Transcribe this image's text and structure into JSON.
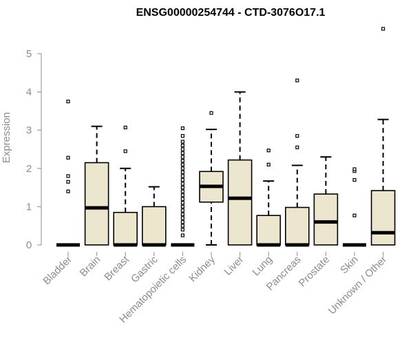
{
  "chart_data": {
    "type": "box",
    "title": "ENSG00000254744 - CTD-3076O17.1",
    "xlabel": "",
    "ylabel": "Expression",
    "ylim": [
      0,
      5.7
    ],
    "yticks": [
      0,
      1,
      2,
      3,
      4,
      5
    ],
    "box_color": "#ede6cf",
    "categories": [
      "Bladder",
      "Brain",
      "Breast",
      "Gastric",
      "Hematopoietic cells",
      "Kidney",
      "Liver",
      "Lung",
      "Pancreas",
      "Prostate",
      "Skin",
      "Unknown / Other"
    ],
    "boxes": [
      {
        "min": 0,
        "q1": 0,
        "median": 0,
        "q3": 0,
        "max": 0,
        "outliers": [
          1.4,
          1.65,
          1.8,
          2.28,
          3.75
        ]
      },
      {
        "min": 0,
        "q1": 0,
        "median": 0.97,
        "q3": 2.15,
        "max": 3.1,
        "outliers": []
      },
      {
        "min": 0,
        "q1": 0,
        "median": 0,
        "q3": 0.85,
        "max": 2.0,
        "outliers": [
          2.45,
          3.07
        ]
      },
      {
        "min": 0,
        "q1": 0,
        "median": 0,
        "q3": 1.0,
        "max": 1.52,
        "outliers": []
      },
      {
        "min": 0,
        "q1": 0,
        "median": 0,
        "q3": 0,
        "max": 0,
        "outliers": [
          0.25,
          0.4,
          0.5,
          0.6,
          0.7,
          0.8,
          0.9,
          1.0,
          1.1,
          1.2,
          1.3,
          1.4,
          1.5,
          1.6,
          1.7,
          1.8,
          1.9,
          2.0,
          2.1,
          2.2,
          2.3,
          2.4,
          2.5,
          2.6,
          2.7,
          2.85,
          3.05
        ]
      },
      {
        "min": 0,
        "q1": 1.12,
        "median": 1.53,
        "q3": 1.92,
        "max": 3.02,
        "outliers": [
          3.45
        ]
      },
      {
        "min": 0,
        "q1": 0,
        "median": 1.22,
        "q3": 2.22,
        "max": 4.0,
        "outliers": []
      },
      {
        "min": 0,
        "q1": 0,
        "median": 0,
        "q3": 0.77,
        "max": 1.67,
        "outliers": [
          2.1,
          2.47
        ]
      },
      {
        "min": 0,
        "q1": 0,
        "median": 0,
        "q3": 0.98,
        "max": 2.08,
        "outliers": [
          2.55,
          2.85,
          4.3
        ]
      },
      {
        "min": 0,
        "q1": 0,
        "median": 0.6,
        "q3": 1.33,
        "max": 2.3,
        "outliers": []
      },
      {
        "min": 0,
        "q1": 0,
        "median": 0,
        "q3": 0,
        "max": 0,
        "outliers": [
          0.77,
          1.7,
          1.93,
          1.98
        ]
      },
      {
        "min": 0,
        "q1": 0,
        "median": 0.32,
        "q3": 1.42,
        "max": 3.28,
        "outliers": [
          5.65
        ]
      }
    ]
  }
}
